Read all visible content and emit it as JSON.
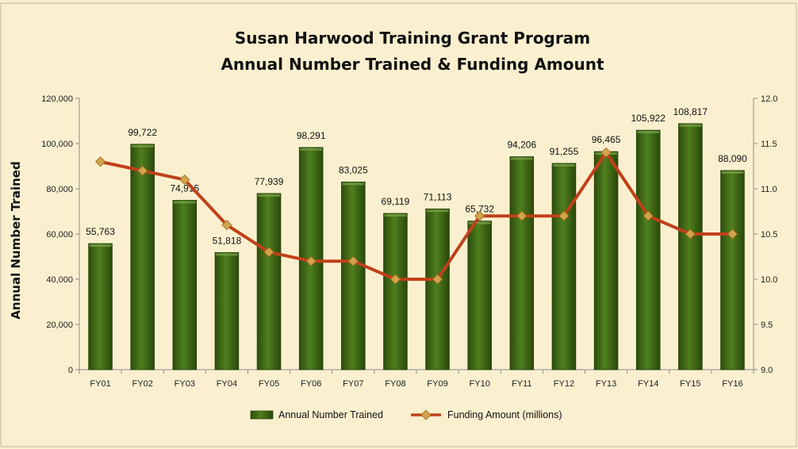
{
  "chart_data": {
    "type": "bar",
    "title_line1": "Susan Harwood Training Grant Program",
    "title_line2": "Annual Number Trained & Funding Amount",
    "ylabel": "Annual Number Trained",
    "y2label": "",
    "categories": [
      "FY01",
      "FY02",
      "FY03",
      "FY04",
      "FY05",
      "FY06",
      "FY07",
      "FY08",
      "FY09",
      "FY10",
      "FY11",
      "FY12",
      "FY13",
      "FY14",
      "FY15",
      "FY16"
    ],
    "series": [
      {
        "name": "Annual Number Trained",
        "type": "bar",
        "axis": "left",
        "color": "#3c6314",
        "values": [
          55763,
          99722,
          74915,
          51818,
          77939,
          98291,
          83025,
          69119,
          71113,
          65732,
          94206,
          91255,
          96465,
          105922,
          108817,
          88090
        ],
        "labels": [
          "55,763",
          "99,722",
          "74,915",
          "51,818",
          "77,939",
          "98,291",
          "83,025",
          "69,119",
          "71,113",
          "65,732",
          "94,206",
          "91,255",
          "96,465",
          "105,922",
          "108,817",
          "88,090"
        ]
      },
      {
        "name": "Funding Amount (millions)",
        "type": "line",
        "axis": "right",
        "color": "#c0401a",
        "marker_color": "#d4a24a",
        "values": [
          11.3,
          11.2,
          11.1,
          10.6,
          10.3,
          10.2,
          10.2,
          10.0,
          10.0,
          10.7,
          10.7,
          10.7,
          11.4,
          10.7,
          10.5,
          10.5
        ]
      }
    ],
    "ylim": [
      0,
      120000
    ],
    "y_ticks": [
      "0",
      "20,000",
      "40,000",
      "60,000",
      "80,000",
      "100,000",
      "120,000"
    ],
    "y2lim": [
      9.0,
      12.0
    ],
    "y2_ticks": [
      "9.0",
      "9.5",
      "10.0",
      "10.5",
      "11.0",
      "11.5",
      "12.0"
    ],
    "grid": false,
    "legend_position": "bottom"
  }
}
